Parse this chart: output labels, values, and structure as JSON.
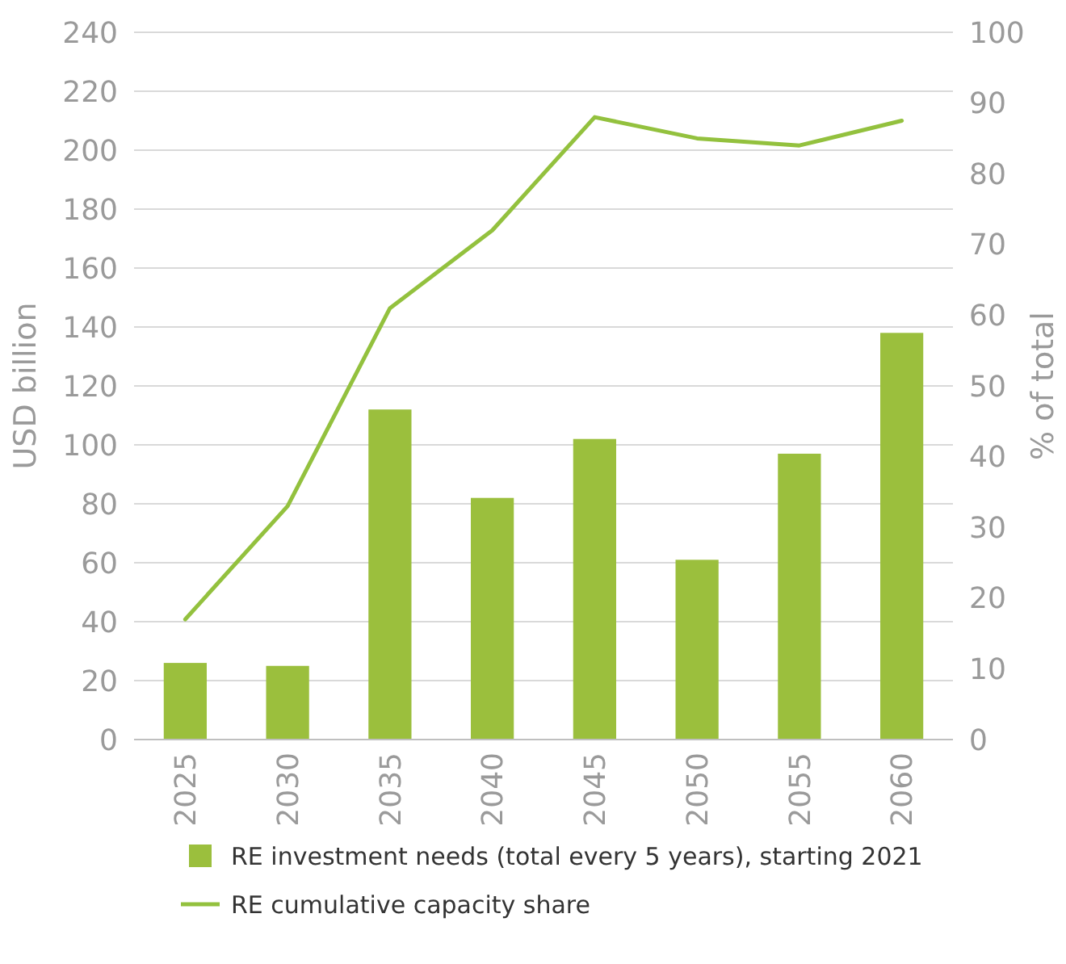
{
  "chart_data": {
    "type": "bar",
    "categories": [
      "2025",
      "2030",
      "2035",
      "2040",
      "2045",
      "2050",
      "2055",
      "2060"
    ],
    "ylabel": "USD billion",
    "y2label": "% of total",
    "ylim": [
      0,
      240
    ],
    "yticks": [
      0,
      20,
      40,
      60,
      80,
      100,
      120,
      140,
      160,
      180,
      200,
      220,
      240
    ],
    "y2lim": [
      0,
      100
    ],
    "y2ticks": [
      0,
      10,
      20,
      30,
      40,
      50,
      60,
      70,
      80,
      90,
      100
    ],
    "grid": "y",
    "legend": "bottom",
    "series": [
      {
        "name": "RE investment needs (total every 5 years), starting 2021",
        "color": "#9bbf3d",
        "values": [
          26,
          25,
          112,
          82,
          102,
          61,
          97,
          138
        ]
      },
      {
        "name": "RE cumulative capacity share",
        "type": "line",
        "axis": "y2",
        "color": "#93c13e",
        "values": [
          17,
          33,
          61,
          72,
          88,
          85,
          84,
          87.5
        ]
      }
    ]
  }
}
